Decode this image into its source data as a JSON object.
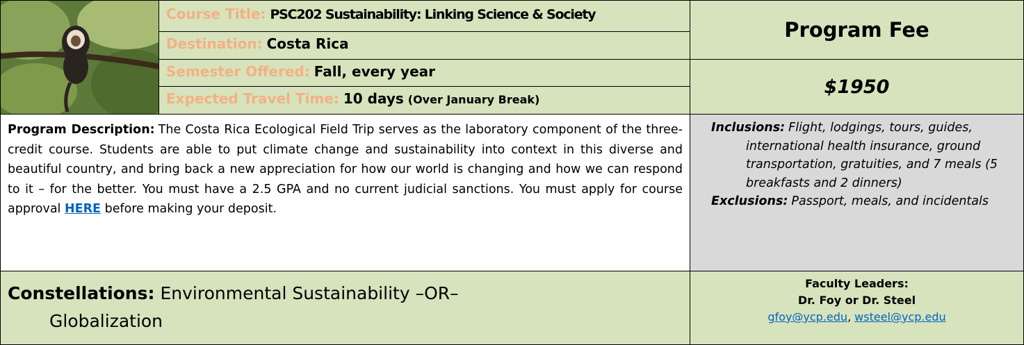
{
  "course_info": [
    {
      "label": "Course Title:",
      "value": "PSC202 Sustainability: Linking Science & Society"
    },
    {
      "label": "Destination:",
      "value": "Costa Rica"
    },
    {
      "label": "Semester Offered:",
      "value": "Fall, every year"
    },
    {
      "label": "Expected Travel Time:",
      "value": "10 days",
      "note": "(Over January Break)"
    }
  ],
  "fee": {
    "title": "Program Fee",
    "amount": "$1950"
  },
  "description": {
    "label": "Program Description:",
    "text": "The Costa Rica Ecological Field Trip serves as the laboratory component of the three-credit course. Students are able to put climate change and sustainability into context in this diverse and beautiful country, and bring back a new appreciation for how our world is changing and how we can respond to it – for the better. You must have a 2.5 GPA and no current judicial sanctions. You must apply for course approval",
    "link": "HERE",
    "text_after_link": "before making your deposit."
  },
  "inclusions": {
    "label": "Inclusions:",
    "text": "Flight, lodgings, tours, guides, international health insurance, ground transportation, gratuities, and 7 meals (5 breakfasts and 2 dinners)"
  },
  "exclusions": {
    "label": "Exclusions:",
    "text": "Passport, meals, and incidentals"
  },
  "constellations": {
    "label": "Constellations:",
    "text": "Environmental Sustainability –OR– Globalization"
  },
  "faculty": {
    "label": "Faculty Leaders:",
    "names": "Dr. Foy or Dr. Steel",
    "emails": [
      "gfoy@ycp.edu",
      "wsteel@ycp.edu"
    ],
    "email_separator": ","
  }
}
